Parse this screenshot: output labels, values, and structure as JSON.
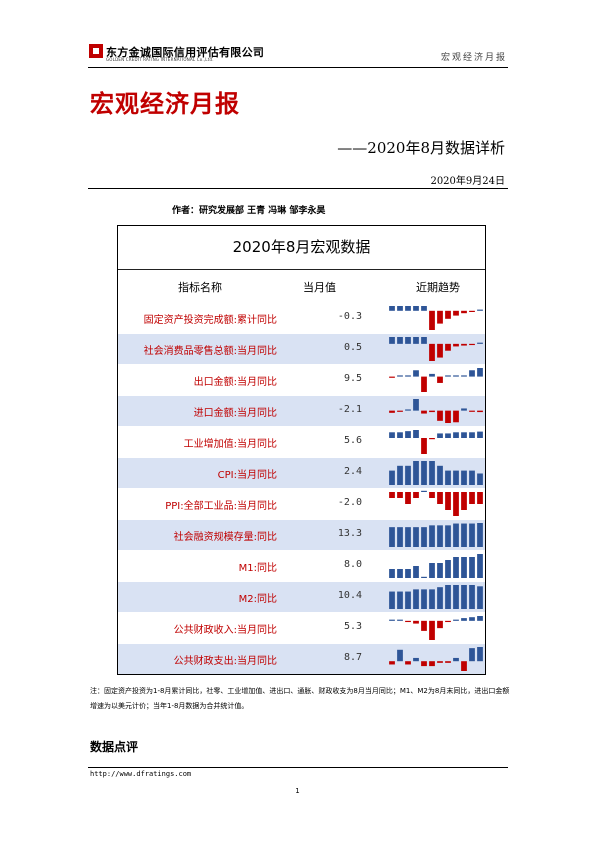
{
  "header": {
    "company_cn": "东方金诚国际信用评估有限公司",
    "company_en": "GOLDEN CREDIT RATING INTERNATIONAL Co.,Ltd.",
    "running_head": "宏观经济月报"
  },
  "report": {
    "title": "宏观经济月报",
    "subtitle": "——2020年8月数据详析",
    "date": "2020年9月24日",
    "authors": "作者：研究发展部 王青 冯琳 邹李永昊"
  },
  "table": {
    "title": "2020年8月宏观数据",
    "col_name": "指标名称",
    "col_value": "当月值",
    "col_trend": "近期趋势",
    "colors": {
      "positive": "#2e5597",
      "negative": "#c00000",
      "shade": "#d9e2f3"
    },
    "rows": [
      {
        "name": "固定资产投资完成额:累计同比",
        "value": "-0.3",
        "trend": [
          6,
          6,
          6,
          6,
          6,
          -24,
          -16,
          -10,
          -6,
          -3,
          -1,
          0
        ]
      },
      {
        "name": "社会消费品零售总额:当月同比",
        "value": "0.5",
        "trend": [
          8,
          8,
          8,
          8,
          8,
          -20,
          -16,
          -8,
          -3,
          -2,
          -1,
          0.5
        ]
      },
      {
        "name": "出口金额:当月同比",
        "value": "9.5",
        "trend": [
          -1,
          1,
          0.5,
          7,
          -17,
          3,
          -7,
          1,
          1,
          0.5,
          7,
          9.5
        ]
      },
      {
        "name": "进口金额:当月同比",
        "value": "-2.1",
        "trend": [
          -3,
          -1,
          1,
          16,
          -4,
          -2,
          -14,
          -17,
          -16,
          3,
          -1,
          -2
        ]
      },
      {
        "name": "工业增加值:当月同比",
        "value": "5.6",
        "trend": [
          5,
          5,
          6,
          7,
          -14,
          -1,
          4,
          4,
          5,
          5,
          5,
          5.6
        ]
      },
      {
        "name": "CPI:当月同比",
        "value": "2.4",
        "trend": [
          3,
          4,
          4,
          5,
          5,
          5,
          4,
          3,
          3,
          3,
          3,
          2.4
        ]
      },
      {
        "name": "PPI:全部工业品:当月同比",
        "value": "-2.0",
        "trend": [
          -1,
          -1,
          -2,
          -1,
          0,
          -1,
          -2,
          -3,
          -4,
          -3,
          -2,
          -2
        ]
      },
      {
        "name": "社会融资规模存量:同比",
        "value": "13.3",
        "trend": [
          11,
          11,
          11,
          11,
          11,
          12,
          12,
          12,
          13,
          13,
          13,
          13.3
        ]
      },
      {
        "name": "M1:同比",
        "value": "8.0",
        "trend": [
          3,
          3,
          3,
          4,
          0,
          5,
          5,
          6,
          7,
          7,
          7,
          8
        ]
      },
      {
        "name": "M2:同比",
        "value": "10.4",
        "trend": [
          8,
          8,
          8,
          9,
          9,
          9,
          10,
          11,
          11,
          11,
          11,
          10.4
        ]
      },
      {
        "name": "公共财政收入:当月同比",
        "value": "5.3",
        "trend": [
          1,
          1,
          -1,
          -3,
          -11,
          -21,
          -8,
          -1,
          1,
          3,
          4,
          5.3
        ]
      },
      {
        "name": "公共财政支出:当月同比",
        "value": "8.7",
        "trend": [
          -2,
          7,
          -2,
          2,
          -3,
          -3,
          -1,
          -1,
          2,
          -6,
          8,
          8.7
        ]
      }
    ]
  },
  "note": "注：固定资产投资为1-8月累计同比，社零、工业增加值、进出口、通胀、财政收支为8月当月同比；M1、M2为8月末同比，进出口金额增速为以美元计价；当年1-8月数据为合并统计值。",
  "section_title": "数据点评",
  "footer": {
    "url": "http://www.dfratings.com",
    "page": "1"
  }
}
